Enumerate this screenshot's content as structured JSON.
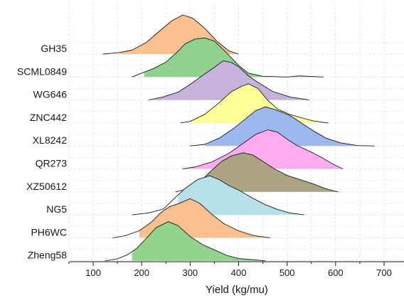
{
  "chart_data": {
    "type": "ridgeline",
    "title": "",
    "xlabel": "Yield (kg/mu)",
    "ylabel": "",
    "xlim": [
      50,
      740
    ],
    "xticks": [
      100,
      200,
      300,
      400,
      500,
      600,
      700
    ],
    "grid": true,
    "series": [
      {
        "name": "GH35",
        "color": "#fbc08f",
        "fill_min": 155,
        "peak": 285,
        "points": [
          [
            120,
            0
          ],
          [
            150,
            0.03
          ],
          [
            180,
            0.1
          ],
          [
            210,
            0.3
          ],
          [
            240,
            0.62
          ],
          [
            262,
            0.85
          ],
          [
            285,
            1.0
          ],
          [
            305,
            0.92
          ],
          [
            330,
            0.66
          ],
          [
            355,
            0.33
          ],
          [
            380,
            0.08
          ],
          [
            400,
            0
          ]
        ]
      },
      {
        "name": "SCML0849",
        "color": "#8fd18f",
        "fill_min": 205,
        "peak": 330,
        "points": [
          [
            180,
            0
          ],
          [
            200,
            0.1
          ],
          [
            225,
            0.22
          ],
          [
            250,
            0.38
          ],
          [
            270,
            0.6
          ],
          [
            290,
            0.85
          ],
          [
            310,
            0.97
          ],
          [
            330,
            1.0
          ],
          [
            350,
            0.92
          ],
          [
            375,
            0.62
          ],
          [
            400,
            0.3
          ],
          [
            420,
            0.1
          ],
          [
            450,
            0.02
          ],
          [
            500,
            0.0
          ],
          [
            525,
            0.03
          ],
          [
            575,
            0
          ]
        ]
      },
      {
        "name": "WG646",
        "color": "#c5b3dc",
        "fill_min": 225,
        "peak": 368,
        "points": [
          [
            215,
            0
          ],
          [
            245,
            0.08
          ],
          [
            275,
            0.2
          ],
          [
            300,
            0.4
          ],
          [
            320,
            0.58
          ],
          [
            340,
            0.75
          ],
          [
            355,
            0.88
          ],
          [
            368,
            1.0
          ],
          [
            385,
            0.96
          ],
          [
            400,
            0.85
          ],
          [
            420,
            0.62
          ],
          [
            440,
            0.45
          ],
          [
            470,
            0.22
          ],
          [
            505,
            0.08
          ],
          [
            545,
            0
          ]
        ]
      },
      {
        "name": "ZNC442",
        "color": "#ffff99",
        "fill_min": 300,
        "peak": 420,
        "points": [
          [
            280,
            0
          ],
          [
            300,
            0.04
          ],
          [
            330,
            0.22
          ],
          [
            360,
            0.52
          ],
          [
            385,
            0.8
          ],
          [
            405,
            0.93
          ],
          [
            420,
            1.0
          ],
          [
            440,
            0.88
          ],
          [
            460,
            0.58
          ],
          [
            480,
            0.36
          ],
          [
            505,
            0.22
          ],
          [
            530,
            0.13
          ],
          [
            555,
            0.05
          ],
          [
            585,
            0
          ]
        ]
      },
      {
        "name": "XL8242",
        "color": "#9fb7ef",
        "fill_min": 330,
        "peak": 455,
        "points": [
          [
            300,
            0
          ],
          [
            330,
            0.04
          ],
          [
            360,
            0.2
          ],
          [
            390,
            0.45
          ],
          [
            415,
            0.7
          ],
          [
            435,
            0.9
          ],
          [
            455,
            1.0
          ],
          [
            475,
            0.93
          ],
          [
            490,
            0.86
          ],
          [
            510,
            0.75
          ],
          [
            530,
            0.58
          ],
          [
            555,
            0.38
          ],
          [
            580,
            0.2
          ],
          [
            610,
            0.08
          ],
          [
            645,
            0.01
          ],
          [
            680,
            0
          ]
        ]
      },
      {
        "name": "QR273",
        "color": "#ffabf2",
        "fill_min": 300,
        "peak": 460,
        "points": [
          [
            285,
            0
          ],
          [
            310,
            0.05
          ],
          [
            345,
            0.18
          ],
          [
            380,
            0.4
          ],
          [
            410,
            0.66
          ],
          [
            435,
            0.88
          ],
          [
            460,
            1.0
          ],
          [
            480,
            0.94
          ],
          [
            500,
            0.76
          ],
          [
            520,
            0.6
          ],
          [
            545,
            0.46
          ],
          [
            570,
            0.3
          ],
          [
            595,
            0.12
          ],
          [
            615,
            0
          ]
        ]
      },
      {
        "name": "XZ50612",
        "color": "#aaa485",
        "fill_min": 300,
        "peak": 410,
        "points": [
          [
            270,
            0
          ],
          [
            290,
            0.06
          ],
          [
            315,
            0.2
          ],
          [
            340,
            0.5
          ],
          [
            365,
            0.78
          ],
          [
            385,
            0.92
          ],
          [
            410,
            1.0
          ],
          [
            430,
            0.94
          ],
          [
            450,
            0.78
          ],
          [
            475,
            0.58
          ],
          [
            500,
            0.42
          ],
          [
            525,
            0.32
          ],
          [
            555,
            0.2
          ],
          [
            580,
            0.08
          ],
          [
            605,
            0
          ]
        ]
      },
      {
        "name": "NG5",
        "color": "#b6e1e8",
        "fill_min": 275,
        "peak": 340,
        "points": [
          [
            180,
            0
          ],
          [
            215,
            0.05
          ],
          [
            245,
            0.15
          ],
          [
            270,
            0.45
          ],
          [
            290,
            0.68
          ],
          [
            315,
            0.9
          ],
          [
            340,
            1.0
          ],
          [
            360,
            0.9
          ],
          [
            380,
            0.75
          ],
          [
            405,
            0.6
          ],
          [
            430,
            0.42
          ],
          [
            455,
            0.26
          ],
          [
            480,
            0.14
          ],
          [
            505,
            0.05
          ],
          [
            535,
            0
          ]
        ]
      },
      {
        "name": "PH6WC",
        "color": "#fbc08f",
        "fill_min": 195,
        "peak": 300,
        "points": [
          [
            140,
            0
          ],
          [
            165,
            0.05
          ],
          [
            195,
            0.18
          ],
          [
            220,
            0.4
          ],
          [
            240,
            0.65
          ],
          [
            258,
            0.8
          ],
          [
            275,
            0.87
          ],
          [
            300,
            1.0
          ],
          [
            320,
            0.88
          ],
          [
            345,
            0.6
          ],
          [
            370,
            0.36
          ],
          [
            400,
            0.18
          ],
          [
            430,
            0.06
          ],
          [
            465,
            0
          ]
        ]
      },
      {
        "name": "Zheng58",
        "color": "#92d38e",
        "fill_min": 180,
        "peak": 255,
        "points": [
          [
            125,
            0
          ],
          [
            150,
            0.05
          ],
          [
            170,
            0.15
          ],
          [
            190,
            0.32
          ],
          [
            210,
            0.58
          ],
          [
            230,
            0.85
          ],
          [
            255,
            1.0
          ],
          [
            275,
            0.9
          ],
          [
            300,
            0.62
          ],
          [
            325,
            0.42
          ],
          [
            350,
            0.28
          ],
          [
            375,
            0.14
          ],
          [
            400,
            0.06
          ],
          [
            455,
            0
          ]
        ]
      }
    ]
  }
}
